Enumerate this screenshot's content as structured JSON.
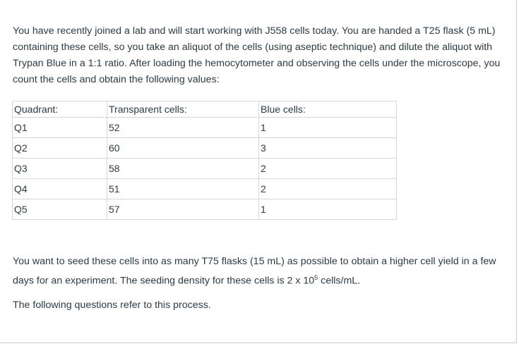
{
  "intro": "You have recently joined a lab and will start working with J558 cells today. You are handed a T25 flask (5 mL) containing these cells, so you take an aliquot of the cells (using aseptic technique) and dilute the aliquot with Trypan Blue in a 1:1 ratio. After loading the hemocytometer and observing the cells under the microscope, you count the cells and obtain the following values:",
  "table": {
    "headers": [
      "Quadrant:",
      "Transparent cells:",
      "Blue cells:"
    ],
    "rows": [
      [
        "Q1",
        "52",
        "1"
      ],
      [
        "Q2",
        "60",
        "3"
      ],
      [
        "Q3",
        "58",
        "2"
      ],
      [
        "Q4",
        "51",
        "2"
      ],
      [
        "Q5",
        "57",
        "1"
      ]
    ]
  },
  "followup": {
    "before_exponent": "You want to seed these cells into as many T75 flasks (15 mL) as possible to obtain a higher cell yield in a few days for an experiment. The seeding density for these cells is 2 x 10",
    "exponent": "5",
    "after_exponent": " cells/mL."
  },
  "closing": "The following questions refer to this process."
}
